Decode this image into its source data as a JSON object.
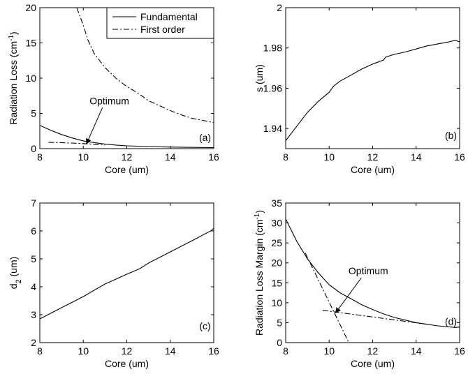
{
  "chart_data": [
    {
      "id": "a",
      "type": "line",
      "xlabel": "Core (um)",
      "ylabel": "Radiation Loss (cm",
      "ylabel_sup": "-1",
      "ylabel_close": ")",
      "xlim": [
        8,
        16
      ],
      "ylim": [
        0,
        20
      ],
      "xticks": [
        8,
        10,
        12,
        14,
        16
      ],
      "yticks": [
        0,
        5,
        10,
        15,
        20
      ],
      "grid": false,
      "legend": "top-right",
      "series": [
        {
          "name": "Fundamental",
          "style": "solid",
          "x": [
            8,
            8.5,
            9,
            9.5,
            10,
            10.5,
            11,
            11.5,
            12,
            13,
            14,
            15,
            16
          ],
          "y": [
            3.3,
            2.6,
            2.0,
            1.5,
            1.1,
            0.85,
            0.65,
            0.5,
            0.4,
            0.3,
            0.22,
            0.18,
            0.15
          ]
        },
        {
          "name": "First order",
          "style": "dashdot",
          "x": [
            9.7,
            10,
            10.2,
            10.5,
            11,
            11.5,
            12,
            12.5,
            13,
            13.5,
            14,
            14.5,
            15,
            15.5,
            16
          ],
          "y": [
            20,
            17.5,
            15.5,
            13.5,
            11.5,
            10.0,
            8.8,
            7.9,
            6.8,
            6.1,
            5.4,
            4.8,
            4.3,
            4.0,
            3.7
          ]
        },
        {
          "name": "",
          "style": "dashdot",
          "x": [
            8.4,
            9.8,
            11.0
          ],
          "y": [
            0.9,
            0.75,
            0.5
          ]
        }
      ],
      "annotations": [
        {
          "text": "(a)",
          "x": 15.6,
          "y": 1.6
        },
        {
          "text": "Optimum",
          "x": 11.2,
          "y": 6.8,
          "arrow_to": [
            10.15,
            0.7
          ]
        }
      ]
    },
    {
      "id": "b",
      "type": "line",
      "xlabel": "Core (um)",
      "ylabel": "s (um)",
      "xlim": [
        8,
        16
      ],
      "ylim": [
        1.93,
        2.0
      ],
      "xticks": [
        8,
        10,
        12,
        14,
        16
      ],
      "yticks": [
        1.94,
        1.96,
        1.98,
        2
      ],
      "ytick_labels": [
        "1.94",
        "1.96",
        "1.98",
        "2"
      ],
      "grid": false,
      "series": [
        {
          "name": "",
          "style": "solid",
          "x": [
            8,
            8.5,
            9,
            9.5,
            10,
            10.2,
            10.5,
            11,
            11.5,
            12,
            12.5,
            12.6,
            13,
            13.5,
            14,
            14.5,
            15,
            15.5,
            15.8,
            16
          ],
          "y": [
            1.934,
            1.941,
            1.948,
            1.9535,
            1.958,
            1.961,
            1.9635,
            1.9665,
            1.9695,
            1.972,
            1.974,
            1.9755,
            1.9768,
            1.978,
            1.9795,
            1.981,
            1.982,
            1.983,
            1.9838,
            1.983
          ]
        }
      ],
      "annotations": [
        {
          "text": "(b)",
          "x": 15.6,
          "y": 1.9365
        }
      ]
    },
    {
      "id": "c",
      "type": "line",
      "xlabel": "Core (um)",
      "ylabel": "d",
      "ylabel_sub": "2",
      "ylabel_close": " (um)",
      "xlim": [
        8,
        16
      ],
      "ylim": [
        2,
        7
      ],
      "xticks": [
        8,
        10,
        12,
        14,
        16
      ],
      "yticks": [
        2,
        3,
        4,
        5,
        6,
        7
      ],
      "grid": false,
      "series": [
        {
          "name": "",
          "style": "solid",
          "x": [
            8,
            9,
            10,
            11,
            12,
            12.6,
            13,
            14,
            15,
            15.9,
            16
          ],
          "y": [
            2.85,
            3.25,
            3.65,
            4.1,
            4.45,
            4.65,
            4.85,
            5.25,
            5.65,
            6.02,
            6.1
          ]
        }
      ],
      "annotations": [
        {
          "text": "(c)",
          "x": 15.6,
          "y": 2.6
        }
      ]
    },
    {
      "id": "d",
      "type": "line",
      "xlabel": "Core (um)",
      "ylabel": "Radiation Loss Margin (cm",
      "ylabel_sup": "-1",
      "ylabel_close": ")",
      "xlim": [
        8,
        16
      ],
      "ylim": [
        0,
        35
      ],
      "xticks": [
        8,
        10,
        12,
        14,
        16
      ],
      "yticks": [
        0,
        5,
        10,
        15,
        20,
        25,
        30,
        35
      ],
      "grid": false,
      "series": [
        {
          "name": "",
          "style": "solid",
          "x": [
            8,
            8.5,
            9,
            9.5,
            10,
            10.5,
            11,
            11.5,
            12,
            12.5,
            13,
            14,
            15,
            15.8,
            16
          ],
          "y": [
            31,
            25.5,
            21,
            17.5,
            14.5,
            12.5,
            11.0,
            9.5,
            8.3,
            7.2,
            6.3,
            5.0,
            4.2,
            3.8,
            3.9
          ]
        },
        {
          "name": "",
          "style": "dashdot",
          "x": [
            8.9,
            10.9
          ],
          "y": [
            22.5,
            0
          ]
        },
        {
          "name": "",
          "style": "dashdot",
          "x": [
            9.7,
            14.5
          ],
          "y": [
            8.1,
            4.6
          ]
        }
      ],
      "annotations": [
        {
          "text": "(d)",
          "x": 15.6,
          "y": 5.3
        },
        {
          "text": "Optimum",
          "x": 11.8,
          "y": 18.0,
          "arrow_to": [
            10.3,
            7.5
          ]
        }
      ]
    }
  ]
}
